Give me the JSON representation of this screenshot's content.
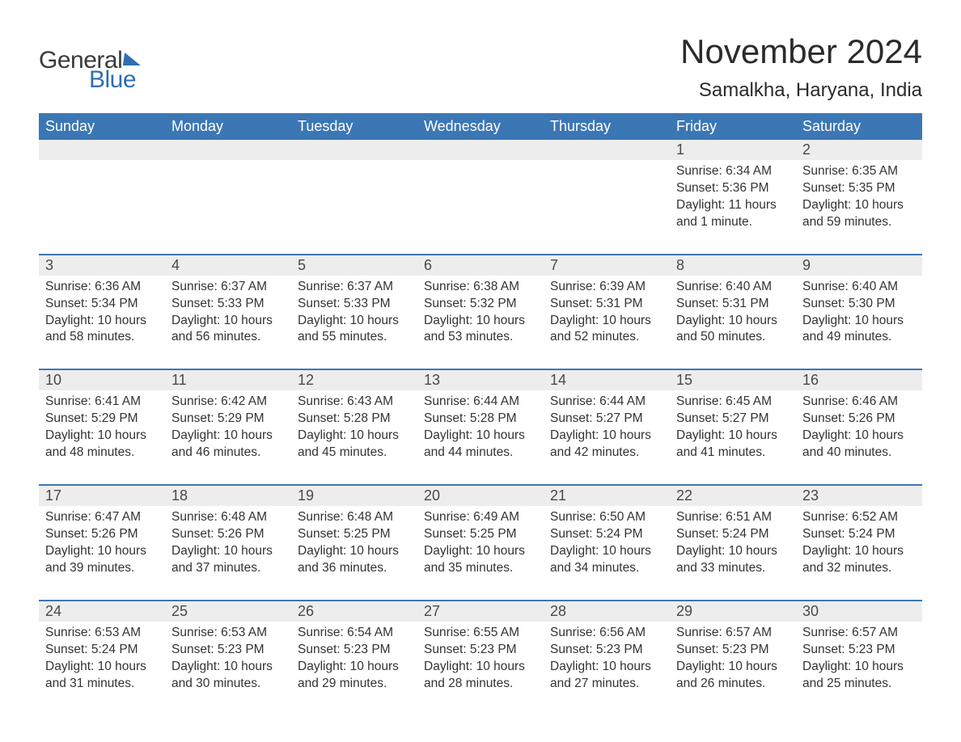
{
  "brand": {
    "word1": "General",
    "word2": "Blue",
    "accent_color": "#2f6fb0"
  },
  "title": "November 2024",
  "location": "Samalkha, Haryana, India",
  "colors": {
    "header_bg": "#3c77b5",
    "header_text": "#ffffff",
    "daynum_bg": "#ededed",
    "text": "#333333",
    "rule": "#3c77b5",
    "page_bg": "#ffffff"
  },
  "fonts": {
    "title_size": 42,
    "location_size": 24,
    "weekday_size": 18,
    "daynum_size": 18,
    "detail_size": 15.5
  },
  "weekdays": [
    "Sunday",
    "Monday",
    "Tuesday",
    "Wednesday",
    "Thursday",
    "Friday",
    "Saturday"
  ],
  "weeks": [
    [
      null,
      null,
      null,
      null,
      null,
      {
        "n": "1",
        "sunrise": "Sunrise: 6:34 AM",
        "sunset": "Sunset: 5:36 PM",
        "day1": "Daylight: 11 hours",
        "day2": "and 1 minute."
      },
      {
        "n": "2",
        "sunrise": "Sunrise: 6:35 AM",
        "sunset": "Sunset: 5:35 PM",
        "day1": "Daylight: 10 hours",
        "day2": "and 59 minutes."
      }
    ],
    [
      {
        "n": "3",
        "sunrise": "Sunrise: 6:36 AM",
        "sunset": "Sunset: 5:34 PM",
        "day1": "Daylight: 10 hours",
        "day2": "and 58 minutes."
      },
      {
        "n": "4",
        "sunrise": "Sunrise: 6:37 AM",
        "sunset": "Sunset: 5:33 PM",
        "day1": "Daylight: 10 hours",
        "day2": "and 56 minutes."
      },
      {
        "n": "5",
        "sunrise": "Sunrise: 6:37 AM",
        "sunset": "Sunset: 5:33 PM",
        "day1": "Daylight: 10 hours",
        "day2": "and 55 minutes."
      },
      {
        "n": "6",
        "sunrise": "Sunrise: 6:38 AM",
        "sunset": "Sunset: 5:32 PM",
        "day1": "Daylight: 10 hours",
        "day2": "and 53 minutes."
      },
      {
        "n": "7",
        "sunrise": "Sunrise: 6:39 AM",
        "sunset": "Sunset: 5:31 PM",
        "day1": "Daylight: 10 hours",
        "day2": "and 52 minutes."
      },
      {
        "n": "8",
        "sunrise": "Sunrise: 6:40 AM",
        "sunset": "Sunset: 5:31 PM",
        "day1": "Daylight: 10 hours",
        "day2": "and 50 minutes."
      },
      {
        "n": "9",
        "sunrise": "Sunrise: 6:40 AM",
        "sunset": "Sunset: 5:30 PM",
        "day1": "Daylight: 10 hours",
        "day2": "and 49 minutes."
      }
    ],
    [
      {
        "n": "10",
        "sunrise": "Sunrise: 6:41 AM",
        "sunset": "Sunset: 5:29 PM",
        "day1": "Daylight: 10 hours",
        "day2": "and 48 minutes."
      },
      {
        "n": "11",
        "sunrise": "Sunrise: 6:42 AM",
        "sunset": "Sunset: 5:29 PM",
        "day1": "Daylight: 10 hours",
        "day2": "and 46 minutes."
      },
      {
        "n": "12",
        "sunrise": "Sunrise: 6:43 AM",
        "sunset": "Sunset: 5:28 PM",
        "day1": "Daylight: 10 hours",
        "day2": "and 45 minutes."
      },
      {
        "n": "13",
        "sunrise": "Sunrise: 6:44 AM",
        "sunset": "Sunset: 5:28 PM",
        "day1": "Daylight: 10 hours",
        "day2": "and 44 minutes."
      },
      {
        "n": "14",
        "sunrise": "Sunrise: 6:44 AM",
        "sunset": "Sunset: 5:27 PM",
        "day1": "Daylight: 10 hours",
        "day2": "and 42 minutes."
      },
      {
        "n": "15",
        "sunrise": "Sunrise: 6:45 AM",
        "sunset": "Sunset: 5:27 PM",
        "day1": "Daylight: 10 hours",
        "day2": "and 41 minutes."
      },
      {
        "n": "16",
        "sunrise": "Sunrise: 6:46 AM",
        "sunset": "Sunset: 5:26 PM",
        "day1": "Daylight: 10 hours",
        "day2": "and 40 minutes."
      }
    ],
    [
      {
        "n": "17",
        "sunrise": "Sunrise: 6:47 AM",
        "sunset": "Sunset: 5:26 PM",
        "day1": "Daylight: 10 hours",
        "day2": "and 39 minutes."
      },
      {
        "n": "18",
        "sunrise": "Sunrise: 6:48 AM",
        "sunset": "Sunset: 5:26 PM",
        "day1": "Daylight: 10 hours",
        "day2": "and 37 minutes."
      },
      {
        "n": "19",
        "sunrise": "Sunrise: 6:48 AM",
        "sunset": "Sunset: 5:25 PM",
        "day1": "Daylight: 10 hours",
        "day2": "and 36 minutes."
      },
      {
        "n": "20",
        "sunrise": "Sunrise: 6:49 AM",
        "sunset": "Sunset: 5:25 PM",
        "day1": "Daylight: 10 hours",
        "day2": "and 35 minutes."
      },
      {
        "n": "21",
        "sunrise": "Sunrise: 6:50 AM",
        "sunset": "Sunset: 5:24 PM",
        "day1": "Daylight: 10 hours",
        "day2": "and 34 minutes."
      },
      {
        "n": "22",
        "sunrise": "Sunrise: 6:51 AM",
        "sunset": "Sunset: 5:24 PM",
        "day1": "Daylight: 10 hours",
        "day2": "and 33 minutes."
      },
      {
        "n": "23",
        "sunrise": "Sunrise: 6:52 AM",
        "sunset": "Sunset: 5:24 PM",
        "day1": "Daylight: 10 hours",
        "day2": "and 32 minutes."
      }
    ],
    [
      {
        "n": "24",
        "sunrise": "Sunrise: 6:53 AM",
        "sunset": "Sunset: 5:24 PM",
        "day1": "Daylight: 10 hours",
        "day2": "and 31 minutes."
      },
      {
        "n": "25",
        "sunrise": "Sunrise: 6:53 AM",
        "sunset": "Sunset: 5:23 PM",
        "day1": "Daylight: 10 hours",
        "day2": "and 30 minutes."
      },
      {
        "n": "26",
        "sunrise": "Sunrise: 6:54 AM",
        "sunset": "Sunset: 5:23 PM",
        "day1": "Daylight: 10 hours",
        "day2": "and 29 minutes."
      },
      {
        "n": "27",
        "sunrise": "Sunrise: 6:55 AM",
        "sunset": "Sunset: 5:23 PM",
        "day1": "Daylight: 10 hours",
        "day2": "and 28 minutes."
      },
      {
        "n": "28",
        "sunrise": "Sunrise: 6:56 AM",
        "sunset": "Sunset: 5:23 PM",
        "day1": "Daylight: 10 hours",
        "day2": "and 27 minutes."
      },
      {
        "n": "29",
        "sunrise": "Sunrise: 6:57 AM",
        "sunset": "Sunset: 5:23 PM",
        "day1": "Daylight: 10 hours",
        "day2": "and 26 minutes."
      },
      {
        "n": "30",
        "sunrise": "Sunrise: 6:57 AM",
        "sunset": "Sunset: 5:23 PM",
        "day1": "Daylight: 10 hours",
        "day2": "and 25 minutes."
      }
    ]
  ]
}
